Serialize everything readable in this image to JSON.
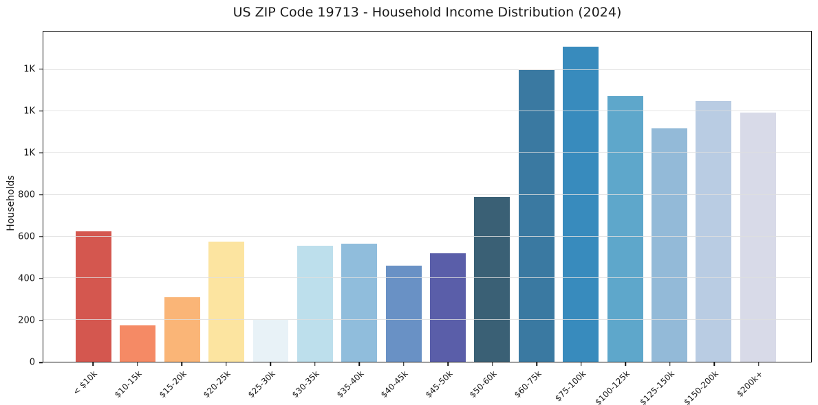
{
  "chart_data": {
    "type": "bar",
    "title": "US ZIP Code 19713 - Household Income Distribution (2024)",
    "xlabel": "",
    "ylabel": "Households",
    "categories": [
      "< $10k",
      "$10-15k",
      "$15-20k",
      "$20-25k",
      "$25-30k",
      "$30-35k",
      "$35-40k",
      "$40-45k",
      "$45-50k",
      "$50-60k",
      "$60-75k",
      "$75-100k",
      "$100-125k",
      "$125-150k",
      "$150-200k",
      "$200k+"
    ],
    "values": [
      625,
      175,
      310,
      575,
      200,
      555,
      565,
      460,
      520,
      790,
      1400,
      1510,
      1275,
      1120,
      1250,
      1195
    ],
    "bar_colors": [
      "#d4574f",
      "#f58a65",
      "#fab577",
      "#fce4a0",
      "#e8f2f7",
      "#bddfec",
      "#90bddc",
      "#6991c5",
      "#5a5ea9",
      "#3a6075",
      "#3a79a1",
      "#388bbd",
      "#5ea7cb",
      "#93bad8",
      "#b9cce3",
      "#d8dae8"
    ],
    "ylim": [
      0,
      1583
    ],
    "yticks": [
      {
        "value": 0,
        "label": "0"
      },
      {
        "value": 200,
        "label": "200"
      },
      {
        "value": 400,
        "label": "400"
      },
      {
        "value": 600,
        "label": "600"
      },
      {
        "value": 800,
        "label": "800"
      },
      {
        "value": 1000,
        "label": "1K"
      },
      {
        "value": 1200,
        "label": "1K"
      },
      {
        "value": 1400,
        "label": "1K"
      }
    ],
    "grid": "horizontal",
    "grid_color": "#e6e6e6",
    "spine_color": "#111111",
    "text_color": "#1a1a1a",
    "bar_width_frac": 0.8,
    "legend_position": "none"
  }
}
